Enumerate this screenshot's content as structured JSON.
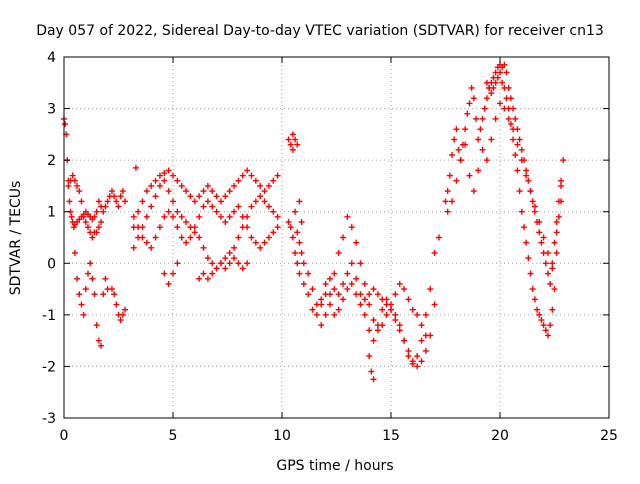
{
  "chart_data": {
    "type": "scatter",
    "title": "Day 057 of 2022, Sidereal Day-to-day VTEC variation (SDTVAR) for receiver cn13",
    "xlabel": "GPS time / hours",
    "ylabel": "SDTVAR / TECUs",
    "xlim": [
      0,
      25
    ],
    "ylim": [
      -3,
      4
    ],
    "xticks": [
      0,
      5,
      10,
      15,
      20,
      25
    ],
    "yticks": [
      -3,
      -2,
      -1,
      0,
      1,
      2,
      3,
      4
    ],
    "grid": true,
    "marker": "+",
    "series": [
      {
        "name": "SDTVAR",
        "color": "#ff0000",
        "x": [
          0.0,
          0.05,
          0.1,
          0.15,
          0.2,
          0.25,
          0.3,
          0.35,
          0.4,
          0.45,
          0.5,
          0.6,
          0.7,
          0.8,
          0.9,
          1.0,
          1.1,
          1.2,
          1.3,
          1.4,
          1.5,
          1.6,
          1.7,
          1.8,
          1.9,
          2.0,
          2.1,
          2.2,
          2.3,
          2.4,
          2.5,
          2.6,
          2.7,
          2.8,
          0.5,
          0.6,
          0.7,
          0.8,
          0.9,
          1.0,
          1.1,
          1.2,
          1.3,
          1.4,
          1.5,
          1.6,
          1.7,
          1.8,
          1.9,
          2.0,
          0.2,
          0.3,
          0.4,
          0.5,
          0.6,
          0.7,
          0.8,
          0.9,
          1.0,
          1.1,
          1.2,
          1.3,
          1.4,
          1.5,
          1.6,
          1.7,
          2.2,
          2.3,
          2.4,
          2.5,
          2.6,
          2.7,
          2.8,
          3.2,
          3.4,
          3.6,
          3.8,
          4.0,
          4.2,
          4.4,
          4.6,
          4.8,
          5.0,
          5.2,
          5.4,
          5.6,
          5.8,
          6.0,
          6.2,
          6.4,
          6.6,
          6.8,
          7.0,
          7.2,
          7.4,
          7.6,
          7.8,
          8.0,
          8.2,
          8.4,
          8.6,
          8.8,
          9.0,
          9.2,
          9.4,
          9.6,
          9.8,
          3.2,
          3.4,
          3.6,
          3.8,
          4.0,
          4.2,
          4.4,
          4.6,
          4.8,
          5.0,
          5.2,
          5.4,
          5.6,
          5.8,
          6.0,
          6.2,
          6.4,
          6.6,
          6.8,
          7.0,
          7.2,
          7.4,
          7.6,
          7.8,
          8.0,
          8.2,
          8.4,
          8.6,
          8.8,
          9.0,
          9.2,
          9.4,
          9.6,
          9.8,
          3.2,
          3.4,
          3.6,
          3.8,
          4.0,
          4.2,
          4.4,
          4.6,
          4.8,
          5.0,
          5.2,
          5.4,
          5.6,
          5.8,
          6.0,
          6.2,
          6.4,
          6.6,
          6.8,
          7.0,
          7.2,
          7.4,
          7.6,
          7.8,
          8.0,
          8.2,
          8.4,
          8.6,
          8.8,
          9.0,
          9.2,
          9.4,
          9.6,
          9.8,
          4.6,
          4.8,
          5.0,
          5.2,
          6.2,
          6.4,
          6.6,
          6.8,
          7.0,
          7.2,
          7.4,
          7.6,
          7.8,
          8.0,
          8.2,
          8.4,
          3.3,
          10.3,
          10.4,
          10.5,
          10.6,
          10.7,
          10.8,
          10.9,
          11.0,
          11.2,
          11.4,
          11.6,
          11.8,
          12.0,
          12.2,
          12.4,
          12.6,
          12.8,
          13.0,
          13.2,
          13.4,
          13.6,
          13.8,
          14.0,
          14.2,
          14.4,
          14.6,
          14.8,
          15.0,
          15.2,
          15.4,
          15.6,
          15.8,
          16.0,
          16.2,
          16.4,
          16.6,
          16.8,
          17.0,
          17.2,
          10.3,
          10.4,
          10.5,
          10.6,
          10.7,
          10.8,
          11.0,
          11.2,
          11.4,
          11.6,
          11.8,
          12.0,
          12.2,
          12.4,
          12.6,
          12.8,
          13.0,
          13.2,
          13.4,
          13.6,
          13.8,
          14.0,
          14.2,
          14.4,
          14.6,
          14.8,
          15.0,
          15.2,
          15.4,
          15.6,
          15.8,
          16.0,
          16.2,
          16.4,
          16.6,
          16.8,
          17.0,
          10.5,
          10.6,
          10.7,
          10.8,
          10.9,
          11.8,
          12.0,
          12.2,
          12.4,
          12.6,
          12.8,
          13.0,
          13.2,
          13.4,
          13.6,
          13.8,
          14.0,
          14.2,
          14.4,
          14.6,
          14.8,
          15.0,
          15.2,
          15.4,
          15.6,
          15.8,
          16.0,
          16.2,
          16.4,
          16.6,
          14.0,
          14.1,
          14.2,
          17.5,
          17.6,
          17.7,
          17.8,
          17.9,
          18.0,
          18.1,
          18.2,
          18.3,
          18.4,
          18.5,
          18.6,
          18.7,
          18.8,
          18.9,
          19.0,
          19.1,
          19.2,
          19.3,
          19.4,
          19.5,
          19.6,
          19.7,
          19.8,
          19.9,
          20.0,
          20.1,
          20.2,
          20.3,
          20.4,
          20.5,
          20.6,
          20.7,
          20.8,
          20.9,
          21.0,
          21.1,
          21.2,
          21.3,
          21.4,
          21.5,
          21.6,
          21.7,
          21.8,
          21.9,
          22.0,
          22.1,
          22.2,
          22.3,
          22.4,
          22.5,
          22.6,
          22.7,
          22.8,
          22.9,
          17.6,
          17.8,
          18.0,
          18.2,
          18.4,
          18.6,
          18.8,
          19.0,
          19.2,
          19.4,
          19.6,
          19.8,
          20.0,
          20.2,
          20.4,
          20.6,
          20.8,
          21.0,
          21.2,
          21.4,
          21.6,
          21.8,
          22.0,
          22.2,
          22.4,
          22.6,
          22.8,
          19.4,
          19.5,
          19.6,
          19.7,
          19.8,
          19.9,
          20.0,
          20.1,
          20.2,
          20.3,
          20.4,
          20.5,
          20.6,
          20.7,
          20.8,
          20.9,
          21.0,
          21.1,
          21.2,
          21.3,
          21.4,
          21.5,
          21.6,
          21.7,
          21.8,
          21.9,
          22.0,
          22.1,
          22.2,
          22.3,
          22.4,
          22.5,
          22.6,
          22.7,
          22.8
        ],
        "y": [
          2.8,
          2.7,
          2.5,
          2.0,
          1.6,
          1.2,
          1.0,
          0.9,
          0.8,
          0.7,
          0.75,
          0.8,
          0.85,
          0.9,
          0.95,
          1.0,
          0.95,
          0.9,
          0.85,
          0.9,
          1.0,
          1.2,
          1.1,
          1.0,
          1.1,
          1.2,
          1.3,
          1.4,
          1.3,
          1.2,
          1.1,
          1.3,
          1.4,
          1.2,
          0.2,
          -0.3,
          -0.6,
          -0.8,
          -1.0,
          -0.5,
          -0.2,
          0.0,
          -0.3,
          -0.6,
          -1.2,
          -1.5,
          -1.6,
          -0.6,
          -0.3,
          -0.5,
          1.5,
          1.6,
          1.7,
          1.6,
          1.5,
          1.4,
          1.2,
          0.9,
          0.8,
          0.7,
          0.6,
          0.5,
          0.6,
          0.6,
          0.7,
          0.8,
          -0.5,
          -0.6,
          -0.8,
          -1.0,
          -1.1,
          -1.0,
          -0.9,
          0.7,
          1.0,
          1.2,
          1.4,
          1.5,
          1.6,
          1.7,
          1.75,
          1.8,
          1.7,
          1.6,
          1.5,
          1.4,
          1.3,
          1.2,
          1.3,
          1.4,
          1.5,
          1.4,
          1.3,
          1.2,
          1.3,
          1.4,
          1.5,
          1.6,
          1.7,
          1.8,
          1.7,
          1.6,
          1.5,
          1.4,
          1.5,
          1.6,
          1.7,
          0.3,
          0.5,
          0.7,
          0.9,
          1.1,
          1.3,
          1.5,
          1.6,
          1.4,
          1.2,
          1.0,
          0.9,
          0.8,
          0.7,
          0.6,
          0.5,
          0.3,
          0.1,
          0.0,
          -0.1,
          0.0,
          0.1,
          0.2,
          0.3,
          0.5,
          0.7,
          0.9,
          1.1,
          1.2,
          1.3,
          1.2,
          1.1,
          1.0,
          0.9,
          0.9,
          0.7,
          0.5,
          0.4,
          0.3,
          0.5,
          0.7,
          0.9,
          1.0,
          0.9,
          0.7,
          0.5,
          0.4,
          0.5,
          0.7,
          0.9,
          1.1,
          1.2,
          1.1,
          1.0,
          0.9,
          0.8,
          0.9,
          1.0,
          1.1,
          0.9,
          0.7,
          0.5,
          0.4,
          0.3,
          0.4,
          0.5,
          0.6,
          0.7,
          -0.2,
          -0.4,
          -0.2,
          0.0,
          -0.3,
          -0.2,
          -0.3,
          -0.2,
          -0.1,
          0.0,
          -0.1,
          0.0,
          0.1,
          0.0,
          -0.1,
          0.0,
          1.85,
          2.4,
          2.3,
          2.2,
          1.0,
          0.6,
          0.4,
          0.2,
          0.0,
          -0.2,
          -0.5,
          -0.8,
          -0.7,
          -0.4,
          -0.3,
          -0.5,
          -0.6,
          -0.4,
          -0.2,
          0.0,
          -0.3,
          -0.6,
          -0.7,
          -0.6,
          -0.5,
          -0.6,
          -0.7,
          -0.8,
          -0.9,
          -1.0,
          -1.2,
          -1.5,
          -1.8,
          -1.9,
          -1.8,
          -1.5,
          -1.0,
          -0.5,
          0.2,
          0.5,
          0.8,
          0.7,
          0.5,
          0.2,
          0.0,
          -0.2,
          -0.4,
          -0.6,
          -0.9,
          -1.0,
          -0.8,
          -0.6,
          -0.8,
          -1.0,
          -0.9,
          -0.7,
          -0.5,
          -0.4,
          -0.6,
          -0.8,
          -1.0,
          -1.3,
          -1.5,
          -1.2,
          -0.9,
          -0.7,
          -0.9,
          -1.1,
          -1.3,
          -1.5,
          -1.7,
          -1.95,
          -2.0,
          -1.9,
          -1.7,
          -1.4,
          -0.8,
          2.5,
          2.4,
          2.3,
          1.2,
          0.8,
          -1.2,
          -1.0,
          -0.6,
          -0.2,
          0.2,
          0.5,
          0.9,
          0.7,
          0.4,
          0.0,
          -0.4,
          -0.8,
          -1.1,
          -1.3,
          -1.2,
          -1.0,
          -0.8,
          -0.6,
          -0.4,
          -0.5,
          -0.7,
          -0.9,
          -1.0,
          -1.2,
          -1.4,
          -1.8,
          -2.1,
          -2.25,
          1.2,
          1.4,
          1.7,
          2.1,
          2.4,
          2.6,
          2.2,
          2.0,
          2.3,
          2.6,
          2.9,
          3.1,
          3.4,
          3.2,
          2.8,
          2.4,
          2.6,
          2.8,
          3.0,
          3.2,
          3.4,
          3.5,
          3.6,
          3.7,
          3.8,
          3.85,
          3.8,
          3.85,
          3.7,
          3.4,
          3.2,
          3.0,
          2.8,
          2.6,
          2.4,
          2.2,
          2.0,
          1.8,
          1.6,
          1.4,
          1.2,
          1.0,
          0.8,
          0.6,
          0.4,
          0.2,
          0.0,
          -0.2,
          -0.4,
          0.0,
          0.4,
          0.8,
          1.2,
          1.6,
          2.0,
          1.0,
          1.2,
          1.6,
          2.0,
          2.3,
          1.7,
          1.4,
          1.8,
          2.2,
          2.0,
          2.4,
          2.8,
          3.1,
          3.0,
          2.8,
          2.6,
          2.3,
          2.0,
          1.7,
          1.4,
          1.1,
          0.8,
          0.5,
          0.2,
          -0.1,
          0.6,
          1.2,
          3.5,
          3.4,
          3.3,
          3.4,
          3.5,
          3.6,
          3.7,
          3.5,
          3.4,
          3.2,
          3.0,
          2.7,
          2.4,
          2.1,
          1.8,
          1.4,
          1.0,
          0.7,
          0.4,
          0.1,
          -0.2,
          -0.5,
          -0.7,
          -0.9,
          -1.0,
          -1.1,
          -1.2,
          -1.3,
          -1.4,
          -1.2,
          -0.9,
          -0.5,
          0.2,
          0.9,
          1.5
        ]
      }
    ]
  }
}
